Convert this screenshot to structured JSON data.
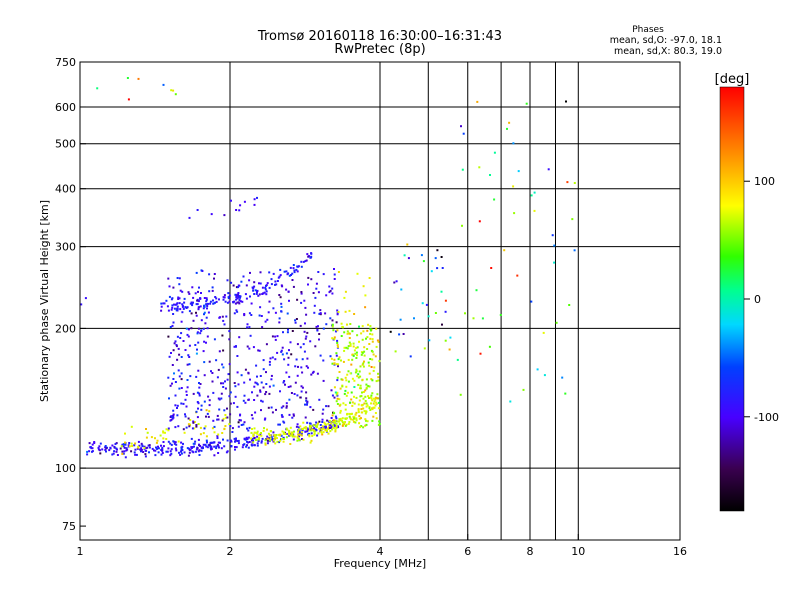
{
  "header": {
    "title_line1": "Tromsø 20160118 16:30:00–16:31:43",
    "title_line2": "RwPretec (8p)",
    "stats_title": "Phases",
    "stats_o": "mean, sd,O: -97.0, 18.1",
    "stats_x": "mean, sd,X: 80.3, 19.0"
  },
  "colorbar": {
    "unit": "[deg]",
    "ticks": [
      {
        "value": 100,
        "label": "100"
      },
      {
        "value": 0,
        "label": "0"
      },
      {
        "value": -100,
        "label": "-100"
      }
    ],
    "range": [
      -180,
      180
    ]
  },
  "chart_data": {
    "type": "scatter",
    "xlabel": "Frequency [MHz]",
    "ylabel": "Stationary phase Virtual Height [km]",
    "xscale": "log",
    "yscale": "log",
    "xlim": [
      1,
      16
    ],
    "ylim": [
      70,
      750
    ],
    "xticks": [
      {
        "value": 1,
        "label": "1"
      },
      {
        "value": 2,
        "label": "2"
      },
      {
        "value": 4,
        "label": "4"
      },
      {
        "value": 6,
        "label": "6"
      },
      {
        "value": 8,
        "label": "8"
      },
      {
        "value": 10,
        "label": "10"
      },
      {
        "value": 16,
        "label": "16"
      }
    ],
    "xgrid": [
      2,
      4,
      5,
      6,
      7,
      8,
      9,
      10
    ],
    "yticks": [
      {
        "value": 75,
        "label": "75"
      },
      {
        "value": 100,
        "label": "100"
      },
      {
        "value": 200,
        "label": "200"
      },
      {
        "value": 300,
        "label": "300"
      },
      {
        "value": 400,
        "label": "400"
      },
      {
        "value": 500,
        "label": "500"
      },
      {
        "value": 600,
        "label": "600"
      },
      {
        "value": 750,
        "label": "750"
      }
    ],
    "ygrid": [
      100,
      200,
      300,
      400,
      500,
      600
    ],
    "grid": true,
    "point_color_meaning": "phase in degrees",
    "traces": [
      {
        "kind": "curve",
        "f0": 1.03,
        "f1": 3.3,
        "h_min": 110,
        "h_max": 125,
        "spread": 0.018,
        "phase": -105,
        "phase_sd": 14,
        "count": 360
      },
      {
        "kind": "curve",
        "f0": 2.2,
        "f1": 3.95,
        "h_min": 117,
        "h_max": 140,
        "spread": 0.02,
        "phase": 78,
        "phase_sd": 12,
        "count": 220
      },
      {
        "kind": "band",
        "f0": 1.2,
        "f1": 2.0,
        "h0": 113,
        "h1": 126,
        "spread": 0.035,
        "phase": 85,
        "phase_sd": 12,
        "count": 55
      },
      {
        "kind": "curve",
        "f0": 1.45,
        "f1": 2.95,
        "h_min": 225,
        "h_max": 290,
        "spread": 0.02,
        "phase": -100,
        "phase_sd": 12,
        "count": 150
      },
      {
        "kind": "cloud",
        "f0": 1.5,
        "f1": 3.3,
        "h0": 120,
        "h1": 270,
        "phase": -110,
        "phase_sd": 20,
        "count": 560
      },
      {
        "kind": "cloud",
        "f0": 3.2,
        "f1": 4.0,
        "h0": 122,
        "h1": 205,
        "phase": 70,
        "phase_sd": 28,
        "count": 240
      },
      {
        "kind": "cloud",
        "f0": 3.3,
        "f1": 3.9,
        "h0": 210,
        "h1": 265,
        "phase": 90,
        "phase_sd": 10,
        "count": 12
      },
      {
        "kind": "cloud",
        "f0": 4.2,
        "f1": 5.8,
        "h0": 160,
        "h1": 310,
        "phase": -30,
        "phase_sd": 90,
        "count": 35
      },
      {
        "kind": "cloud",
        "f0": 5.8,
        "f1": 9.9,
        "h0": 135,
        "h1": 620,
        "phase": 20,
        "phase_sd": 95,
        "count": 50
      },
      {
        "kind": "cloud",
        "f0": 1.05,
        "f1": 1.6,
        "h0": 620,
        "h1": 700,
        "phase": 60,
        "phase_sd": 70,
        "count": 8
      },
      {
        "kind": "band",
        "f0": 1.65,
        "f1": 2.3,
        "h0": 355,
        "h1": 370,
        "spread": 0.02,
        "phase": -110,
        "phase_sd": 8,
        "count": 12
      },
      {
        "kind": "cloud",
        "f0": 1.0,
        "f1": 1.1,
        "h0": 225,
        "h1": 245,
        "phase": -110,
        "phase_sd": 8,
        "count": 2
      }
    ]
  }
}
